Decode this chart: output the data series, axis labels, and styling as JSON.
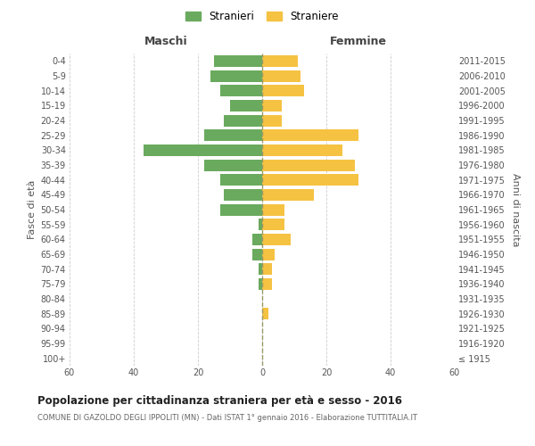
{
  "age_groups": [
    "100+",
    "95-99",
    "90-94",
    "85-89",
    "80-84",
    "75-79",
    "70-74",
    "65-69",
    "60-64",
    "55-59",
    "50-54",
    "45-49",
    "40-44",
    "35-39",
    "30-34",
    "25-29",
    "20-24",
    "15-19",
    "10-14",
    "5-9",
    "0-4"
  ],
  "birth_years": [
    "≤ 1915",
    "1916-1920",
    "1921-1925",
    "1926-1930",
    "1931-1935",
    "1936-1940",
    "1941-1945",
    "1946-1950",
    "1951-1955",
    "1956-1960",
    "1961-1965",
    "1966-1970",
    "1971-1975",
    "1976-1980",
    "1981-1985",
    "1986-1990",
    "1991-1995",
    "1996-2000",
    "2001-2005",
    "2006-2010",
    "2011-2015"
  ],
  "males": [
    0,
    0,
    0,
    0,
    0,
    1,
    1,
    3,
    3,
    1,
    13,
    12,
    13,
    18,
    37,
    18,
    12,
    10,
    13,
    16,
    15
  ],
  "females": [
    0,
    0,
    0,
    2,
    0,
    3,
    3,
    4,
    9,
    7,
    7,
    16,
    30,
    29,
    25,
    30,
    6,
    6,
    13,
    12,
    11
  ],
  "male_color": "#6aaa5e",
  "female_color": "#f5c242",
  "grid_color": "#cccccc",
  "dashed_line_color": "#999966",
  "title": "Popolazione per cittadinanza straniera per età e sesso - 2016",
  "subtitle": "COMUNE DI GAZOLDO DEGLI IPPOLITI (MN) - Dati ISTAT 1° gennaio 2016 - Elaborazione TUTTITALIA.IT",
  "legend_male": "Stranieri",
  "legend_female": "Straniere",
  "label_left": "Maschi",
  "label_right": "Femmine",
  "ylabel_left": "Fasce di età",
  "ylabel_right": "Anni di nascita",
  "xlim": 60,
  "background_color": "#ffffff"
}
